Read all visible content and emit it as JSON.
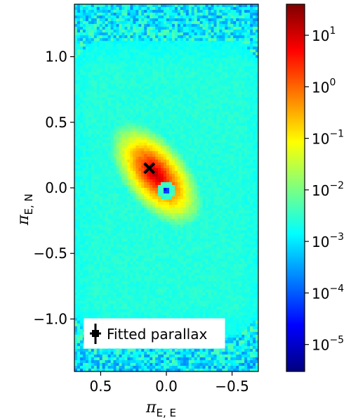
{
  "chart_data": [
    {
      "type": "heatmap",
      "title": "",
      "xlabel": "π",
      "xlabel_sub": "E, E",
      "ylabel": "π",
      "ylabel_sub": "E, N",
      "xlim": [
        0.7,
        -0.7
      ],
      "ylim": [
        -1.4,
        1.4
      ],
      "x_axis_inverted": true,
      "x_ticks": [
        0.5,
        0.0,
        -0.5
      ],
      "x_tick_labels": [
        "0.5",
        "0.0",
        "−0.5"
      ],
      "y_ticks": [
        1.0,
        0.5,
        0.0,
        -0.5,
        -1.0
      ],
      "y_tick_labels": [
        "1.0",
        "0.5",
        "0.0",
        "−0.5",
        "−1.0"
      ],
      "colormap": "jet",
      "color_scale": "log",
      "density_features": [
        {
          "name": "main peak",
          "x": 0.08,
          "y": 0.1,
          "level": 20
        },
        {
          "name": "second peak",
          "x": 0.0,
          "y": -0.02,
          "level": 0.01
        }
      ],
      "fitted_parallax": {
        "x": 0.13,
        "y": 0.15,
        "marker": "black cross with error bars"
      },
      "legend": {
        "label": "Fitted parallax",
        "placement": "lower-left"
      }
    },
    {
      "type": "colorbar",
      "scale": "log",
      "range": [
        3e-06,
        40
      ],
      "tick_values": [
        1e-05,
        0.0001,
        0.001,
        0.01,
        0.1,
        1,
        10
      ],
      "tick_bases": [
        "10",
        "10",
        "10",
        "10",
        "10",
        "10",
        "10"
      ],
      "tick_exponents": [
        "−5",
        "−4",
        "−3",
        "−2",
        "−1",
        "0",
        "1"
      ],
      "colors": [
        "#00007f",
        "#0000ff",
        "#007fff",
        "#00ffff",
        "#7fff7f",
        "#ffff00",
        "#ff7f00",
        "#ff0000",
        "#7f0000"
      ]
    }
  ]
}
